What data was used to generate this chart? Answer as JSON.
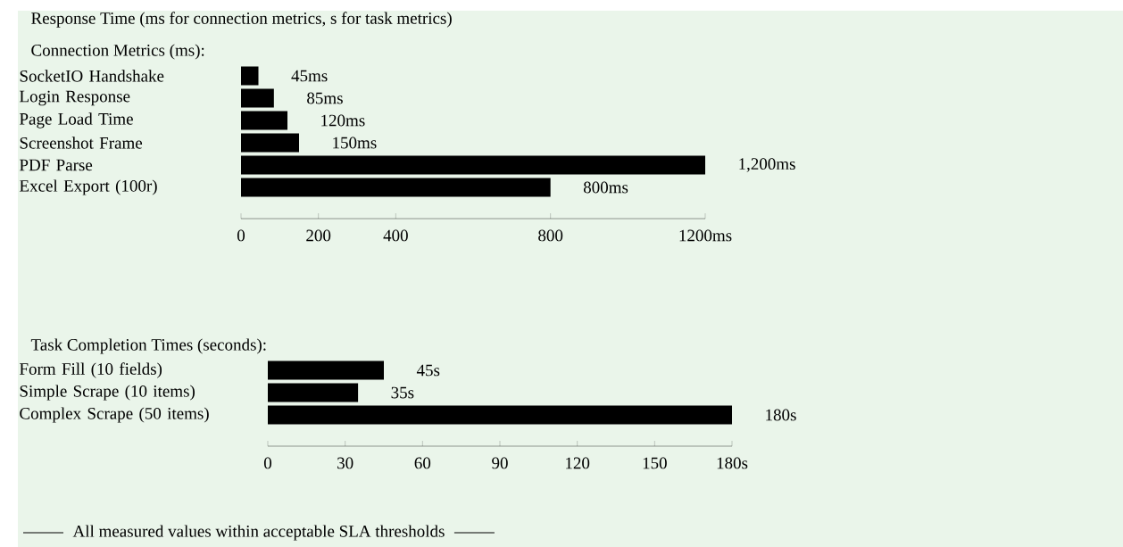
{
  "chart_data": [
    {
      "type": "bar",
      "orientation": "horizontal",
      "title": "Response Time (ms for connection metrics, s for task metrics)",
      "subtitle": "Connection Metrics (ms):",
      "categories": [
        "SocketIO Handshake",
        "Login Response",
        "Page Load Time",
        "Screenshot Frame",
        "PDF Parse",
        "Excel Export (100r)"
      ],
      "values": [
        45,
        85,
        120,
        150,
        1200,
        800
      ],
      "value_labels": [
        "45ms",
        "85ms",
        "120ms",
        "150ms",
        "1,200ms",
        "800ms"
      ],
      "color": "#000000",
      "xlim": [
        0,
        1200
      ],
      "xticks": [
        0,
        200,
        400,
        800,
        {
          "value": 1200,
          "label": "1200ms"
        }
      ]
    },
    {
      "type": "bar",
      "orientation": "horizontal",
      "subtitle": "Task Completion Times (seconds):",
      "categories": [
        "Form Fill (10 fields)",
        "Simple Scrape (10 items)",
        "Complex Scrape (50 items)"
      ],
      "values": [
        45,
        35,
        180
      ],
      "value_labels": [
        "45s",
        "35s",
        "180s"
      ],
      "color": "#000000",
      "xlim": [
        0,
        180
      ],
      "xticks": [
        0,
        30,
        60,
        90,
        120,
        150,
        {
          "value": 180,
          "label": "180s"
        }
      ],
      "annotations": [
        "All measured values within acceptable SLA thresholds"
      ]
    }
  ]
}
